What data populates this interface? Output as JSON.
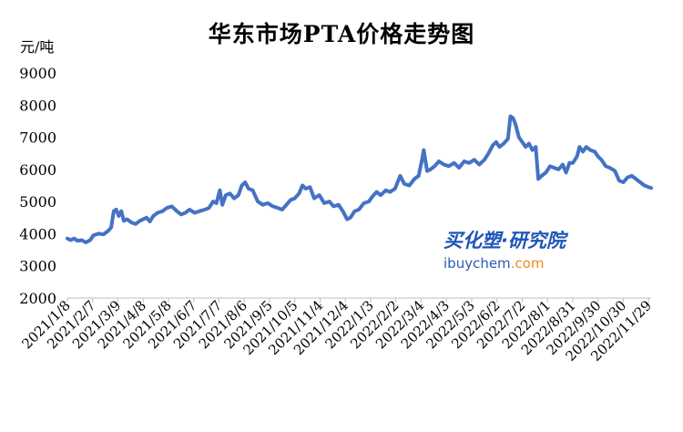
{
  "chart_data": {
    "type": "line",
    "title": "华东市场PTA价格走势图",
    "ylabel": "元/吨",
    "ylim": [
      2000,
      9000
    ],
    "yticks": [
      2000,
      3000,
      4000,
      5000,
      6000,
      7000,
      8000,
      9000
    ],
    "grid": false,
    "x_tick_labels": [
      "2021/1/8",
      "2021/2/7",
      "2021/3/9",
      "2021/4/8",
      "2021/5/8",
      "2021/6/7",
      "2021/7/7",
      "2021/8/6",
      "2021/9/5",
      "2021/10/5",
      "2021/11/4",
      "2021/12/4",
      "2022/1/3",
      "2022/2/2",
      "2022/3/4",
      "2022/4/3",
      "2022/5/3",
      "2022/6/2",
      "2022/7/2",
      "2022/8/1",
      "2022/8/31",
      "2022/9/30",
      "2022/10/30",
      "2022/11/29"
    ],
    "series": [
      {
        "color": "#4472C4",
        "points": [
          [
            "2021-01-08",
            3850
          ],
          [
            "2021-01-12",
            3800
          ],
          [
            "2021-01-16",
            3850
          ],
          [
            "2021-01-20",
            3780
          ],
          [
            "2021-01-25",
            3800
          ],
          [
            "2021-01-30",
            3730
          ],
          [
            "2021-02-04",
            3800
          ],
          [
            "2021-02-08",
            3950
          ],
          [
            "2021-02-14",
            4000
          ],
          [
            "2021-02-20",
            3980
          ],
          [
            "2021-02-26",
            4100
          ],
          [
            "2021-03-01",
            4200
          ],
          [
            "2021-03-04",
            4700
          ],
          [
            "2021-03-07",
            4750
          ],
          [
            "2021-03-10",
            4550
          ],
          [
            "2021-03-13",
            4700
          ],
          [
            "2021-03-16",
            4400
          ],
          [
            "2021-03-20",
            4450
          ],
          [
            "2021-03-25",
            4350
          ],
          [
            "2021-03-30",
            4300
          ],
          [
            "2021-04-04",
            4400
          ],
          [
            "2021-04-08",
            4450
          ],
          [
            "2021-04-12",
            4500
          ],
          [
            "2021-04-16",
            4380
          ],
          [
            "2021-04-20",
            4550
          ],
          [
            "2021-04-25",
            4650
          ],
          [
            "2021-05-01",
            4700
          ],
          [
            "2021-05-06",
            4800
          ],
          [
            "2021-05-12",
            4850
          ],
          [
            "2021-05-18",
            4700
          ],
          [
            "2021-05-23",
            4600
          ],
          [
            "2021-05-28",
            4650
          ],
          [
            "2021-06-02",
            4750
          ],
          [
            "2021-06-08",
            4650
          ],
          [
            "2021-06-14",
            4700
          ],
          [
            "2021-06-20",
            4750
          ],
          [
            "2021-06-25",
            4800
          ],
          [
            "2021-06-30",
            5000
          ],
          [
            "2021-07-04",
            4950
          ],
          [
            "2021-07-08",
            5350
          ],
          [
            "2021-07-11",
            4900
          ],
          [
            "2021-07-15",
            5200
          ],
          [
            "2021-07-20",
            5250
          ],
          [
            "2021-07-25",
            5100
          ],
          [
            "2021-07-30",
            5200
          ],
          [
            "2021-08-03",
            5500
          ],
          [
            "2021-08-07",
            5600
          ],
          [
            "2021-08-11",
            5400
          ],
          [
            "2021-08-16",
            5350
          ],
          [
            "2021-08-22",
            5000
          ],
          [
            "2021-08-28",
            4900
          ],
          [
            "2021-09-03",
            4950
          ],
          [
            "2021-09-09",
            4850
          ],
          [
            "2021-09-15",
            4800
          ],
          [
            "2021-09-20",
            4750
          ],
          [
            "2021-09-25",
            4900
          ],
          [
            "2021-09-30",
            5050
          ],
          [
            "2021-10-05",
            5100
          ],
          [
            "2021-10-10",
            5250
          ],
          [
            "2021-10-14",
            5500
          ],
          [
            "2021-10-18",
            5400
          ],
          [
            "2021-10-23",
            5450
          ],
          [
            "2021-10-28",
            5100
          ],
          [
            "2021-11-03",
            5200
          ],
          [
            "2021-11-09",
            4950
          ],
          [
            "2021-11-15",
            5000
          ],
          [
            "2021-11-20",
            4850
          ],
          [
            "2021-11-26",
            4900
          ],
          [
            "2021-12-01",
            4700
          ],
          [
            "2021-12-06",
            4450
          ],
          [
            "2021-12-10",
            4500
          ],
          [
            "2021-12-15",
            4700
          ],
          [
            "2021-12-20",
            4750
          ],
          [
            "2021-12-26",
            4950
          ],
          [
            "2022-01-01",
            5000
          ],
          [
            "2022-01-05",
            5150
          ],
          [
            "2022-01-10",
            5300
          ],
          [
            "2022-01-15",
            5200
          ],
          [
            "2022-01-21",
            5350
          ],
          [
            "2022-01-26",
            5300
          ],
          [
            "2022-02-01",
            5400
          ],
          [
            "2022-02-07",
            5800
          ],
          [
            "2022-02-12",
            5550
          ],
          [
            "2022-02-18",
            5500
          ],
          [
            "2022-02-24",
            5700
          ],
          [
            "2022-03-01",
            5800
          ],
          [
            "2022-03-05",
            6300
          ],
          [
            "2022-03-07",
            6600
          ],
          [
            "2022-03-11",
            5950
          ],
          [
            "2022-03-15",
            6000
          ],
          [
            "2022-03-20",
            6100
          ],
          [
            "2022-03-25",
            6250
          ],
          [
            "2022-03-31",
            6150
          ],
          [
            "2022-04-06",
            6100
          ],
          [
            "2022-04-12",
            6200
          ],
          [
            "2022-04-18",
            6050
          ],
          [
            "2022-04-24",
            6250
          ],
          [
            "2022-04-30",
            6200
          ],
          [
            "2022-05-06",
            6300
          ],
          [
            "2022-05-12",
            6150
          ],
          [
            "2022-05-18",
            6300
          ],
          [
            "2022-05-23",
            6500
          ],
          [
            "2022-05-28",
            6750
          ],
          [
            "2022-06-01",
            6850
          ],
          [
            "2022-06-05",
            6700
          ],
          [
            "2022-06-10",
            6800
          ],
          [
            "2022-06-15",
            6950
          ],
          [
            "2022-06-18",
            7650
          ],
          [
            "2022-06-21",
            7600
          ],
          [
            "2022-06-24",
            7400
          ],
          [
            "2022-06-28",
            7000
          ],
          [
            "2022-07-02",
            6850
          ],
          [
            "2022-07-06",
            6700
          ],
          [
            "2022-07-10",
            6800
          ],
          [
            "2022-07-14",
            6600
          ],
          [
            "2022-07-18",
            6700
          ],
          [
            "2022-07-21",
            5700
          ],
          [
            "2022-07-25",
            5800
          ],
          [
            "2022-07-30",
            5900
          ],
          [
            "2022-08-04",
            6100
          ],
          [
            "2022-08-09",
            6050
          ],
          [
            "2022-08-14",
            6000
          ],
          [
            "2022-08-19",
            6150
          ],
          [
            "2022-08-23",
            5900
          ],
          [
            "2022-08-27",
            6200
          ],
          [
            "2022-08-31",
            6200
          ],
          [
            "2022-09-05",
            6400
          ],
          [
            "2022-09-08",
            6700
          ],
          [
            "2022-09-12",
            6550
          ],
          [
            "2022-09-16",
            6700
          ],
          [
            "2022-09-21",
            6600
          ],
          [
            "2022-09-26",
            6550
          ],
          [
            "2022-09-30",
            6400
          ],
          [
            "2022-10-04",
            6300
          ],
          [
            "2022-10-09",
            6100
          ],
          [
            "2022-10-14",
            6050
          ],
          [
            "2022-10-20",
            5950
          ],
          [
            "2022-10-25",
            5650
          ],
          [
            "2022-10-30",
            5600
          ],
          [
            "2022-11-04",
            5750
          ],
          [
            "2022-11-09",
            5800
          ],
          [
            "2022-11-14",
            5700
          ],
          [
            "2022-11-19",
            5600
          ],
          [
            "2022-11-24",
            5500
          ],
          [
            "2022-11-29",
            5450
          ],
          [
            "2022-12-02",
            5420
          ]
        ]
      }
    ]
  },
  "watermark": {
    "cn": "买化塑·研究院",
    "en_a": "ibuychem",
    "en_b": ".com"
  }
}
